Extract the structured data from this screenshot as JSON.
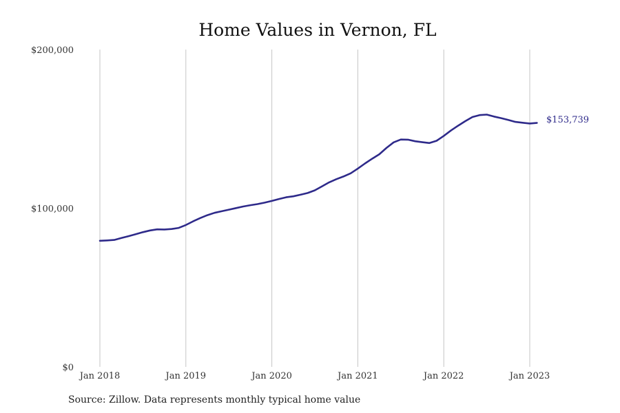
{
  "chart_data": {
    "type": "line",
    "title": "Home Values in Vernon, FL",
    "xlabel": "",
    "ylabel": "",
    "ylim": [
      0,
      200000
    ],
    "y_ticks": [
      {
        "value": 0,
        "label": "$0"
      },
      {
        "value": 100000,
        "label": "$100,000"
      },
      {
        "value": 200000,
        "label": "$200,000"
      }
    ],
    "x_ticks": [
      {
        "date": "2018-01",
        "label": "Jan 2018"
      },
      {
        "date": "2019-01",
        "label": "Jan 2019"
      },
      {
        "date": "2020-01",
        "label": "Jan 2020"
      },
      {
        "date": "2021-01",
        "label": "Jan 2021"
      },
      {
        "date": "2022-01",
        "label": "Jan 2022"
      },
      {
        "date": "2023-01",
        "label": "Jan 2023"
      }
    ],
    "grid": "vertical",
    "legend": "none",
    "color": "#2e2a8a",
    "series": [
      {
        "x": [
          "2018-01",
          "2018-02",
          "2018-03",
          "2018-04",
          "2018-05",
          "2018-06",
          "2018-07",
          "2018-08",
          "2018-09",
          "2018-10",
          "2018-11",
          "2018-12",
          "2019-01",
          "2019-02",
          "2019-03",
          "2019-04",
          "2019-05",
          "2019-06",
          "2019-07",
          "2019-08",
          "2019-09",
          "2019-10",
          "2019-11",
          "2019-12",
          "2020-01",
          "2020-02",
          "2020-03",
          "2020-04",
          "2020-05",
          "2020-06",
          "2020-07",
          "2020-08",
          "2020-09",
          "2020-10",
          "2020-11",
          "2020-12",
          "2021-01",
          "2021-02",
          "2021-03",
          "2021-04",
          "2021-05",
          "2021-06",
          "2021-07",
          "2021-08",
          "2021-09",
          "2021-10",
          "2021-11",
          "2021-12",
          "2022-01",
          "2022-02",
          "2022-03",
          "2022-04",
          "2022-05",
          "2022-06",
          "2022-07",
          "2022-08",
          "2022-09",
          "2022-10",
          "2022-11",
          "2022-12",
          "2023-01",
          "2023-02"
        ],
        "values": [
          79500,
          79700,
          80000,
          81200,
          82400,
          83600,
          84900,
          86000,
          86700,
          86600,
          86900,
          87600,
          89400,
          91700,
          93800,
          95600,
          97100,
          98100,
          99100,
          100100,
          101100,
          101900,
          102600,
          103500,
          104600,
          105800,
          106900,
          107500,
          108500,
          109600,
          111300,
          113800,
          116300,
          118300,
          120000,
          122000,
          125000,
          128200,
          131200,
          134000,
          138000,
          141500,
          143300,
          143200,
          142200,
          141600,
          141100,
          142500,
          145600,
          149000,
          152000,
          154900,
          157500,
          158700,
          159000,
          157800,
          156800,
          155600,
          154400,
          153900,
          153400,
          153739
        ]
      }
    ],
    "end_label": "$153,739"
  },
  "source_note": "Source: Zillow. Data represents monthly typical home value"
}
